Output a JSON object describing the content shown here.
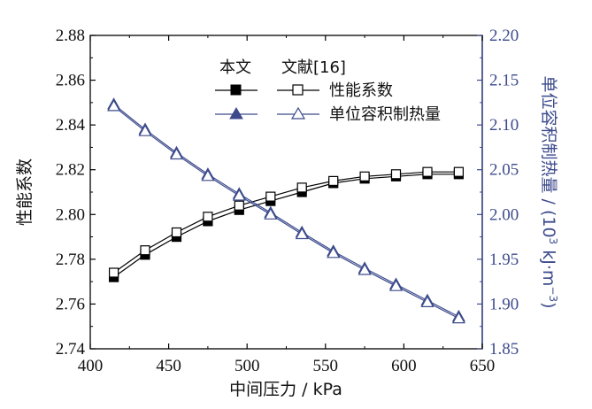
{
  "chart_data": {
    "type": "line",
    "x": [
      415,
      435,
      455,
      475,
      495,
      515,
      535,
      555,
      575,
      595,
      615,
      635
    ],
    "x_ticks": [
      "400",
      "450",
      "500",
      "550",
      "600",
      "650"
    ],
    "y_left_ticks": [
      "2.74",
      "2.76",
      "2.78",
      "2.80",
      "2.82",
      "2.84",
      "2.86",
      "2.88"
    ],
    "y_right_ticks": [
      "1.85",
      "1.90",
      "1.95",
      "2.00",
      "2.05",
      "2.10",
      "2.15",
      "2.20"
    ],
    "xlabel": "中间压力 / kPa",
    "ylabel_left": "性能系数",
    "ylabel_right_main": "单位容积制热量 / (10",
    "ylabel_right_sup": "3",
    "ylabel_right_tail": " kJ·m",
    "ylabel_right_sup2": "−3",
    "ylabel_right_end": ")",
    "xlim": [
      400,
      650
    ],
    "ylim_left": [
      2.74,
      2.88
    ],
    "ylim_right": [
      1.85,
      2.2
    ],
    "legend": {
      "header_left": "本文",
      "header_right": "文献[16]",
      "row1_label": "性能系数",
      "row2_label": "单位容积制热量",
      "placement": "top-right"
    },
    "series": [
      {
        "name": "性能系数 本文",
        "axis": "left",
        "marker": "filled-square",
        "color": "#000000",
        "values": [
          2.772,
          2.782,
          2.79,
          2.797,
          2.802,
          2.806,
          2.81,
          2.814,
          2.816,
          2.817,
          2.818,
          2.818
        ]
      },
      {
        "name": "性能系数 文献[16]",
        "axis": "left",
        "marker": "open-square",
        "color": "#000000",
        "values": [
          2.774,
          2.784,
          2.792,
          2.799,
          2.804,
          2.808,
          2.812,
          2.815,
          2.817,
          2.818,
          2.819,
          2.819
        ]
      },
      {
        "name": "单位容积制热量 本文",
        "axis": "right",
        "marker": "filled-triangle",
        "color": "#3c4a8c",
        "values": [
          2.123,
          2.095,
          2.069,
          2.045,
          2.023,
          2.002,
          1.98,
          1.959,
          1.94,
          1.922,
          1.904,
          1.886
        ]
      },
      {
        "name": "单位容积制热量 文献[16]",
        "axis": "right",
        "marker": "open-triangle",
        "color": "#3c4a8c",
        "values": [
          2.121,
          2.093,
          2.067,
          2.043,
          2.021,
          2.0,
          1.978,
          1.957,
          1.938,
          1.92,
          1.902,
          1.884
        ]
      }
    ],
    "colors": {
      "axis_left": "#000000",
      "axis_right": "#3c4a8c"
    }
  }
}
